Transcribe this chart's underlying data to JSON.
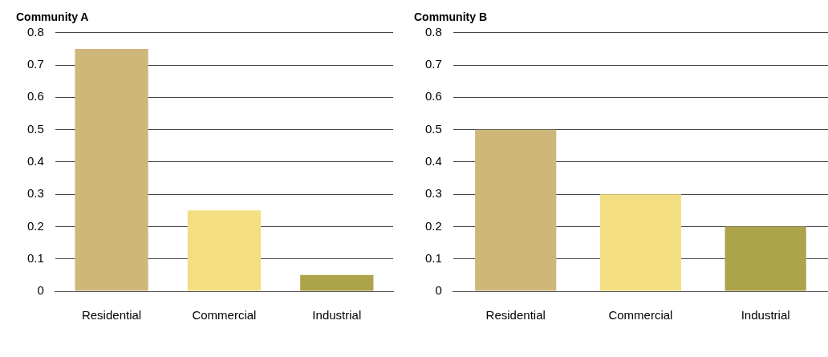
{
  "chart_data": [
    {
      "type": "bar",
      "title": "Community A",
      "categories": [
        "Residential",
        "Commercial",
        "Industrial"
      ],
      "values": [
        0.75,
        0.25,
        0.05
      ],
      "colors": [
        "#cfb77a",
        "#f3df82",
        "#ada34a"
      ],
      "ylim": [
        0,
        0.8
      ],
      "yticks": [
        0,
        0.1,
        0.2,
        0.3,
        0.4,
        0.5,
        0.6,
        0.7,
        0.8
      ],
      "grid": "y",
      "legend": false
    },
    {
      "type": "bar",
      "title": "Community B",
      "categories": [
        "Residential",
        "Commercial",
        "Industrial"
      ],
      "values": [
        0.5,
        0.3,
        0.2
      ],
      "colors": [
        "#cfb77a",
        "#f3df82",
        "#ada34a"
      ],
      "ylim": [
        0,
        0.8
      ],
      "yticks": [
        0,
        0.1,
        0.2,
        0.3,
        0.4,
        0.5,
        0.6,
        0.7,
        0.8
      ],
      "grid": "y",
      "legend": false
    }
  ]
}
